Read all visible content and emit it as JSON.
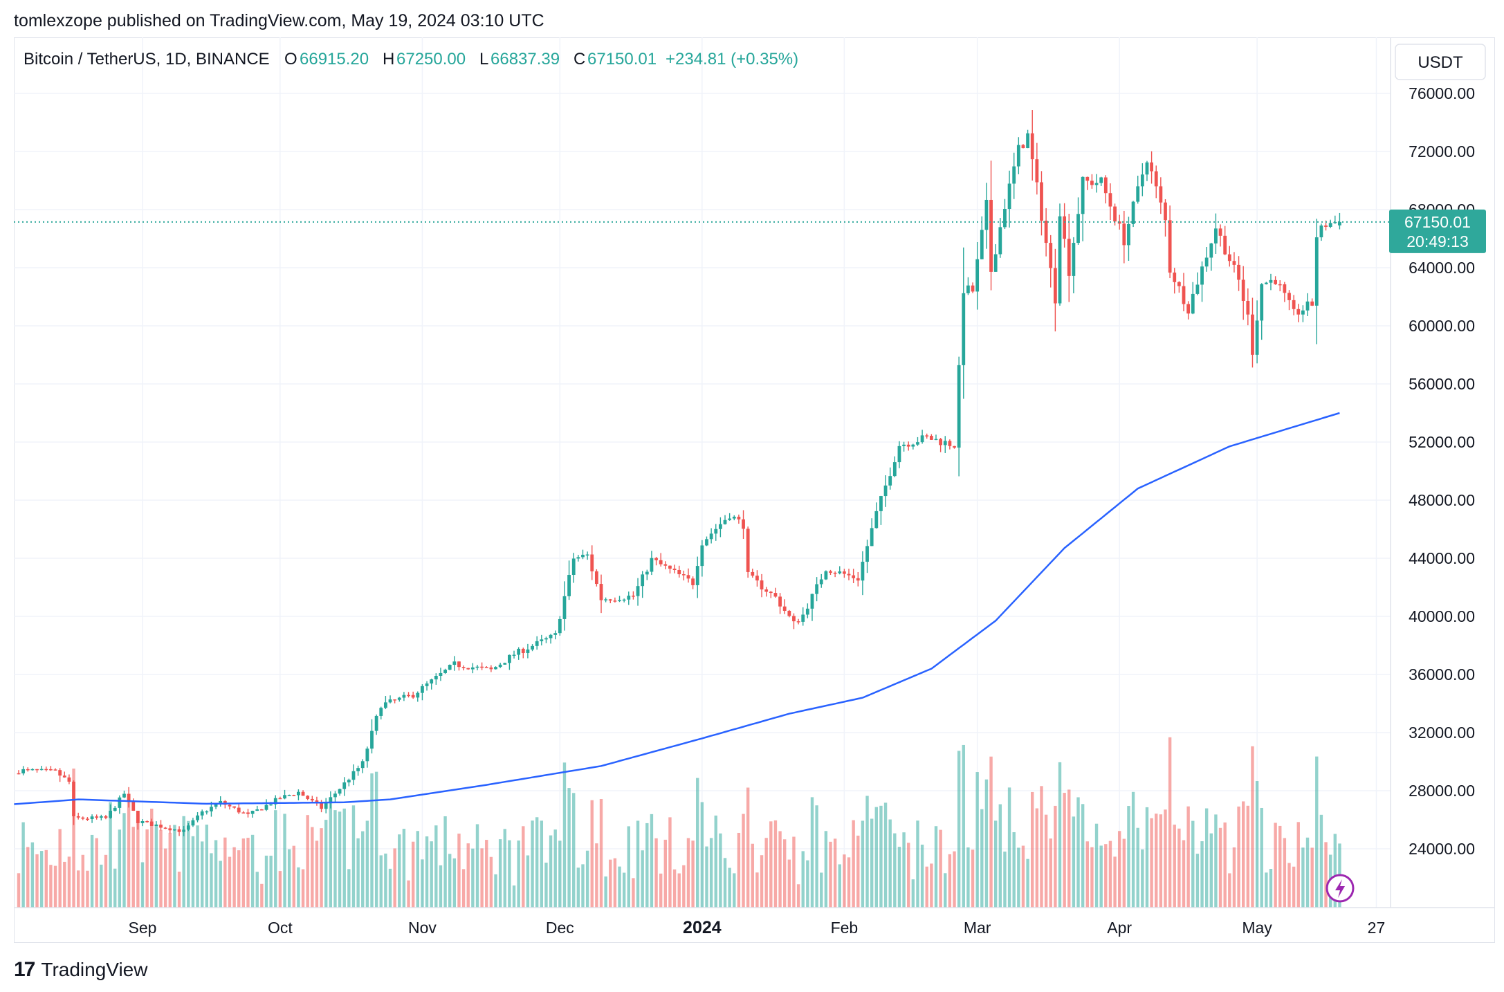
{
  "published": "tomlexzope published on TradingView.com, May 19, 2024 03:10 UTC",
  "header": {
    "symbol": "Bitcoin / TetherUS, 1D, BINANCE",
    "o_label": "O",
    "o_value": "66915.20",
    "h_label": "H",
    "h_value": "67250.00",
    "l_label": "L",
    "l_value": "66837.39",
    "c_label": "C",
    "c_value": "67150.01",
    "change": "+234.81 (+0.35%)"
  },
  "currency": "USDT",
  "price_tag": {
    "price": "67150.01",
    "countdown": "20:49:13"
  },
  "footer": {
    "brand": "TradingView",
    "logo_mark": "17"
  },
  "colors": {
    "up": "#26a69a",
    "down": "#ef5350",
    "ma": "#2962ff",
    "grid": "#f0f3fa",
    "text": "#131722",
    "accent": "#2fa89b"
  },
  "icons": {
    "flash": "lightning-icon"
  },
  "chart_data": {
    "type": "candlestick",
    "title": "Bitcoin / TetherUS, 1D, BINANCE",
    "y_axis": {
      "min": 20000,
      "max": 78000,
      "ticks": [
        24000,
        28000,
        32000,
        36000,
        40000,
        44000,
        48000,
        52000,
        56000,
        60000,
        64000,
        68000,
        72000,
        76000
      ],
      "tick_labels": [
        "24000.00",
        "28000.00",
        "32000.00",
        "36000.00",
        "40000.00",
        "44000.00",
        "48000.00",
        "52000.00",
        "56000.00",
        "60000.00",
        "64000.00",
        "68000.00",
        "72000.00",
        "76000.00"
      ]
    },
    "x_axis": {
      "labels": [
        "Sep",
        "Oct",
        "Nov",
        "Dec",
        "2024",
        "Feb",
        "Mar",
        "Apr",
        "May",
        "27"
      ],
      "label_dates": [
        "2023-09-01",
        "2023-10-01",
        "2023-11-01",
        "2023-12-01",
        "2024-01-01",
        "2024-02-01",
        "2024-03-01",
        "2024-04-01",
        "2024-05-01",
        "2024-05-27"
      ],
      "bold": [
        "2024"
      ]
    },
    "last_close": 67150.01,
    "price_anchors": [
      [
        "2023-08-01",
        29200
      ],
      [
        "2023-08-07",
        29400
      ],
      [
        "2023-08-14",
        29300
      ],
      [
        "2023-08-17",
        28600
      ],
      [
        "2023-08-18",
        26100
      ],
      [
        "2023-08-25",
        26100
      ],
      [
        "2023-08-29",
        27800
      ],
      [
        "2023-09-01",
        25900
      ],
      [
        "2023-09-11",
        25200
      ],
      [
        "2023-09-15",
        26500
      ],
      [
        "2023-09-19",
        27200
      ],
      [
        "2023-09-25",
        26300
      ],
      [
        "2023-10-02",
        27500
      ],
      [
        "2023-10-06",
        27900
      ],
      [
        "2023-10-11",
        26800
      ],
      [
        "2023-10-16",
        28500
      ],
      [
        "2023-10-20",
        29900
      ],
      [
        "2023-10-23",
        33000
      ],
      [
        "2023-10-24",
        33900
      ],
      [
        "2023-10-31",
        34600
      ],
      [
        "2023-11-09",
        36700
      ],
      [
        "2023-11-13",
        36500
      ],
      [
        "2023-11-17",
        36300
      ],
      [
        "2023-11-22",
        37400
      ],
      [
        "2023-12-01",
        38700
      ],
      [
        "2023-12-05",
        44000
      ],
      [
        "2023-12-08",
        44200
      ],
      [
        "2023-12-11",
        41200
      ],
      [
        "2023-12-18",
        41400
      ],
      [
        "2023-12-22",
        43900
      ],
      [
        "2023-12-31",
        42300
      ],
      [
        "2024-01-02",
        45100
      ],
      [
        "2024-01-08",
        47000
      ],
      [
        "2024-01-11",
        46300
      ],
      [
        "2024-01-12",
        42800
      ],
      [
        "2024-01-18",
        41300
      ],
      [
        "2024-01-22",
        39500
      ],
      [
        "2024-01-24",
        40100
      ],
      [
        "2024-01-29",
        43300
      ],
      [
        "2024-02-05",
        42600
      ],
      [
        "2024-02-09",
        47100
      ],
      [
        "2024-02-14",
        51800
      ],
      [
        "2024-02-20",
        52300
      ],
      [
        "2024-02-26",
        51800
      ],
      [
        "2024-02-27",
        57000
      ],
      [
        "2024-02-28",
        62500
      ],
      [
        "2024-03-01",
        62400
      ],
      [
        "2024-03-04",
        68300
      ],
      [
        "2024-03-05",
        63800
      ],
      [
        "2024-03-08",
        68300
      ],
      [
        "2024-03-11",
        72100
      ],
      [
        "2024-03-13",
        73100
      ],
      [
        "2024-03-15",
        69500
      ],
      [
        "2024-03-19",
        61900
      ],
      [
        "2024-03-20",
        67900
      ],
      [
        "2024-03-22",
        63800
      ],
      [
        "2024-03-25",
        69900
      ],
      [
        "2024-03-29",
        69900
      ],
      [
        "2024-04-03",
        65900
      ],
      [
        "2024-04-08",
        71600
      ],
      [
        "2024-04-12",
        67200
      ],
      [
        "2024-04-13",
        63900
      ],
      [
        "2024-04-17",
        61200
      ],
      [
        "2024-04-21",
        64900
      ],
      [
        "2024-04-23",
        66800
      ],
      [
        "2024-04-28",
        63100
      ],
      [
        "2024-04-30",
        60600
      ],
      [
        "2024-05-01",
        58300
      ],
      [
        "2024-05-03",
        62900
      ],
      [
        "2024-05-06",
        63200
      ],
      [
        "2024-05-10",
        60800
      ],
      [
        "2024-05-14",
        61500
      ],
      [
        "2024-05-15",
        66200
      ],
      [
        "2024-05-17",
        67000
      ],
      [
        "2024-05-19",
        67150
      ]
    ],
    "ma_anchors": [
      [
        "2023-08-01",
        27000
      ],
      [
        "2023-08-18",
        27400
      ],
      [
        "2023-09-15",
        27100
      ],
      [
        "2023-10-15",
        27200
      ],
      [
        "2023-10-25",
        27400
      ],
      [
        "2023-11-15",
        28400
      ],
      [
        "2023-12-10",
        29700
      ],
      [
        "2024-01-01",
        31600
      ],
      [
        "2024-01-20",
        33300
      ],
      [
        "2024-02-05",
        34400
      ],
      [
        "2024-02-20",
        36400
      ],
      [
        "2024-03-05",
        39700
      ],
      [
        "2024-03-20",
        44700
      ],
      [
        "2024-04-05",
        48800
      ],
      [
        "2024-04-25",
        51700
      ],
      [
        "2024-05-19",
        54000
      ]
    ],
    "volume_note": "daily volume bars at bottom, colored by candle direction"
  }
}
